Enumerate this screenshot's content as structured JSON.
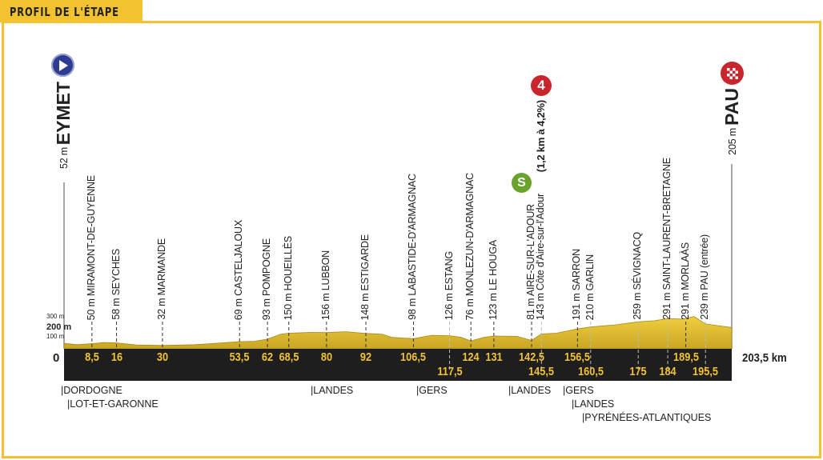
{
  "header": {
    "title": "PROFIL DE L'ÉTAPE"
  },
  "start": {
    "name": "EYMET",
    "altitude": "52 m",
    "icon": "start-play-icon",
    "color": "#2d3c8f"
  },
  "finish": {
    "name": "PAU",
    "altitude": "205 m",
    "icon": "finish-checkered-icon",
    "color": "#c8262c"
  },
  "climb": {
    "category": "4",
    "label": "(1,2 km à 4,2%)",
    "color": "#c8262c"
  },
  "sprint": {
    "label": "S",
    "color": "#6aa32b"
  },
  "colors": {
    "profile": "#e6c234",
    "band": "#1e1e1e",
    "km_text": "#f2c230",
    "frame": "#f2c230"
  },
  "chart_data": {
    "type": "area",
    "xlabel": "",
    "ylabel": "",
    "xlim": [
      0,
      203.5
    ],
    "ylim": [
      0,
      300
    ],
    "y_ticks": [
      "300 m",
      "200 m",
      "100 m",
      "0"
    ],
    "total_label": "203,5 km",
    "waypoints": [
      {
        "km": 8.5,
        "km_label": "8,5",
        "label": "50 m MIRAMONT-DE-GUYENNE",
        "alt": 50,
        "row": 1
      },
      {
        "km": 16,
        "km_label": "16",
        "label": "58 m SEYCHES",
        "alt": 58,
        "row": 1
      },
      {
        "km": 30,
        "km_label": "30",
        "label": "32 m MARMANDE",
        "alt": 32,
        "row": 1
      },
      {
        "km": 53.5,
        "km_label": "53,5",
        "label": "69 m CASTELJALOUX",
        "alt": 69,
        "row": 1
      },
      {
        "km": 62,
        "km_label": "62",
        "label": "93 m POMPOGNE",
        "alt": 93,
        "row": 1
      },
      {
        "km": 68.5,
        "km_label": "68,5",
        "label": "150 m HOUEILLÈS",
        "alt": 150,
        "row": 1
      },
      {
        "km": 80,
        "km_label": "80",
        "label": "156 m LUBBON",
        "alt": 156,
        "row": 1
      },
      {
        "km": 92,
        "km_label": "92",
        "label": "148 m ESTIGARDE",
        "alt": 148,
        "row": 1
      },
      {
        "km": 106.5,
        "km_label": "106,5",
        "label": "98 m LABASTIDE-D'ARMAGNAC",
        "alt": 98,
        "row": 1
      },
      {
        "km": 117.5,
        "km_label": "117,5",
        "label": "126 m ESTANG",
        "alt": 126,
        "row": 2
      },
      {
        "km": 124,
        "km_label": "124",
        "label": "76 m MONLEZUN-D'ARMAGNAC",
        "alt": 76,
        "row": 1
      },
      {
        "km": 131,
        "km_label": "131",
        "label": "123 m LE HOUGA",
        "alt": 123,
        "row": 1
      },
      {
        "km": 142.5,
        "km_label": "142,5",
        "label": "81 m AIRE-SUR-L'ADOUR",
        "alt": 81,
        "row": 1
      },
      {
        "km": 145.5,
        "km_label": "145,5",
        "label": "143 m Côte d'Aire-sur-l'Adour",
        "alt": 143,
        "row": 2
      },
      {
        "km": 156.5,
        "km_label": "156,5",
        "label": "191 m SARRON",
        "alt": 191,
        "row": 1
      },
      {
        "km": 160.5,
        "km_label": "160,5",
        "label": "210 m GARLIN",
        "alt": 210,
        "row": 2
      },
      {
        "km": 175,
        "km_label": "175",
        "label": "259 m SÉVIGNACQ",
        "alt": 259,
        "row": 2
      },
      {
        "km": 184,
        "km_label": "184",
        "label": "291 m SAINT-LAURENT-BRETAGNE",
        "alt": 291,
        "row": 2
      },
      {
        "km": 189.5,
        "km_label": "189,5",
        "label": "291 m MORLAÀS",
        "alt": 291,
        "row": 1
      },
      {
        "km": 195.5,
        "km_label": "195,5",
        "label": "239 m PAU (entrée)",
        "alt": 239,
        "row": 2
      }
    ],
    "profile": [
      [
        0,
        52
      ],
      [
        4,
        40
      ],
      [
        8.5,
        50
      ],
      [
        12,
        60
      ],
      [
        16,
        58
      ],
      [
        22,
        38
      ],
      [
        30,
        32
      ],
      [
        40,
        40
      ],
      [
        53.5,
        69
      ],
      [
        58,
        72
      ],
      [
        62,
        93
      ],
      [
        66,
        140
      ],
      [
        68.5,
        150
      ],
      [
        75,
        158
      ],
      [
        80,
        156
      ],
      [
        86,
        165
      ],
      [
        92,
        148
      ],
      [
        97,
        140
      ],
      [
        100,
        110
      ],
      [
        106.5,
        98
      ],
      [
        112,
        130
      ],
      [
        117.5,
        126
      ],
      [
        121,
        110
      ],
      [
        124,
        76
      ],
      [
        128,
        110
      ],
      [
        131,
        123
      ],
      [
        138,
        120
      ],
      [
        142.5,
        81
      ],
      [
        145.5,
        143
      ],
      [
        150,
        150
      ],
      [
        156.5,
        191
      ],
      [
        160.5,
        210
      ],
      [
        168,
        230
      ],
      [
        175,
        259
      ],
      [
        180,
        270
      ],
      [
        184,
        291
      ],
      [
        188,
        285
      ],
      [
        189.5,
        291
      ],
      [
        192,
        310
      ],
      [
        195.5,
        239
      ],
      [
        203.5,
        205
      ]
    ]
  },
  "departments": [
    {
      "name": "|DORDOGNE"
    },
    {
      "name": "|LOT-ET-GARONNE"
    },
    {
      "name": "|LANDES"
    },
    {
      "name": "|GERS"
    },
    {
      "name": "|LANDES"
    },
    {
      "name": "|GERS"
    },
    {
      "name": "|LANDES"
    },
    {
      "name": "|PYRÉNÉES-ATLANTIQUES"
    }
  ]
}
